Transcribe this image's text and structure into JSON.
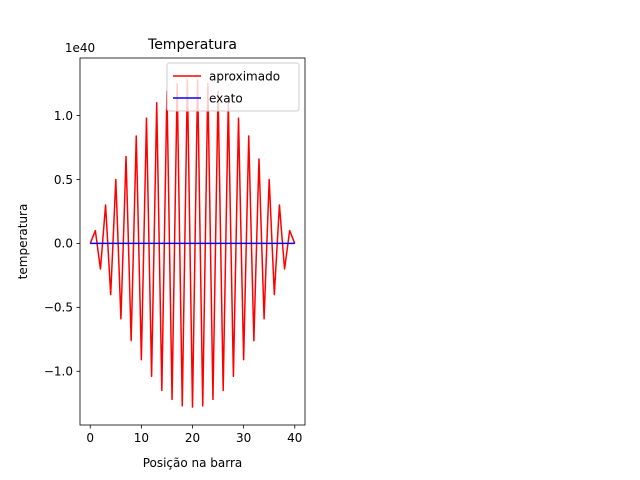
{
  "chart_data": {
    "type": "line",
    "title": "Temperatura",
    "xlabel": "Posição na barra",
    "ylabel": "temperatura",
    "y_offset_label": "1e40",
    "y_scale": 1e+40,
    "xlim": [
      -2,
      42
    ],
    "ylim": [
      -1.42,
      1.45
    ],
    "x_ticks": [
      0,
      10,
      20,
      30,
      40
    ],
    "x_tick_labels": [
      "0",
      "10",
      "20",
      "30",
      "40"
    ],
    "y_ticks": [
      -1.0,
      -0.5,
      0.0,
      0.5,
      1.0
    ],
    "y_tick_labels": [
      "−1.0",
      "−0.5",
      "0.0",
      "0.5",
      "1.0"
    ],
    "grid": false,
    "legend_position": "top-right",
    "series": [
      {
        "name": "aproximado",
        "color": "#ff0000",
        "x": [
          0,
          1,
          2,
          3,
          4,
          5,
          6,
          7,
          8,
          9,
          10,
          11,
          12,
          13,
          14,
          15,
          16,
          17,
          18,
          19,
          20,
          21,
          22,
          23,
          24,
          25,
          26,
          27,
          28,
          29,
          30,
          31,
          32,
          33,
          34,
          35,
          36,
          37,
          38,
          39,
          40
        ],
        "y": [
          0.0,
          0.1,
          -0.2,
          0.3,
          -0.4,
          0.5,
          -0.59,
          0.68,
          -0.76,
          0.84,
          -0.91,
          0.98,
          -1.04,
          1.1,
          -1.15,
          1.19,
          -1.22,
          1.25,
          -1.27,
          1.28,
          -1.28,
          1.28,
          -1.27,
          1.25,
          -1.22,
          1.19,
          -1.15,
          1.1,
          -1.04,
          0.98,
          -0.91,
          0.84,
          -0.76,
          0.66,
          -0.59,
          0.5,
          -0.4,
          0.3,
          -0.2,
          0.1,
          0.0
        ]
      },
      {
        "name": "exato",
        "color": "#0000ff",
        "x": [
          0,
          40
        ],
        "y": [
          0.0,
          0.0
        ]
      }
    ]
  }
}
